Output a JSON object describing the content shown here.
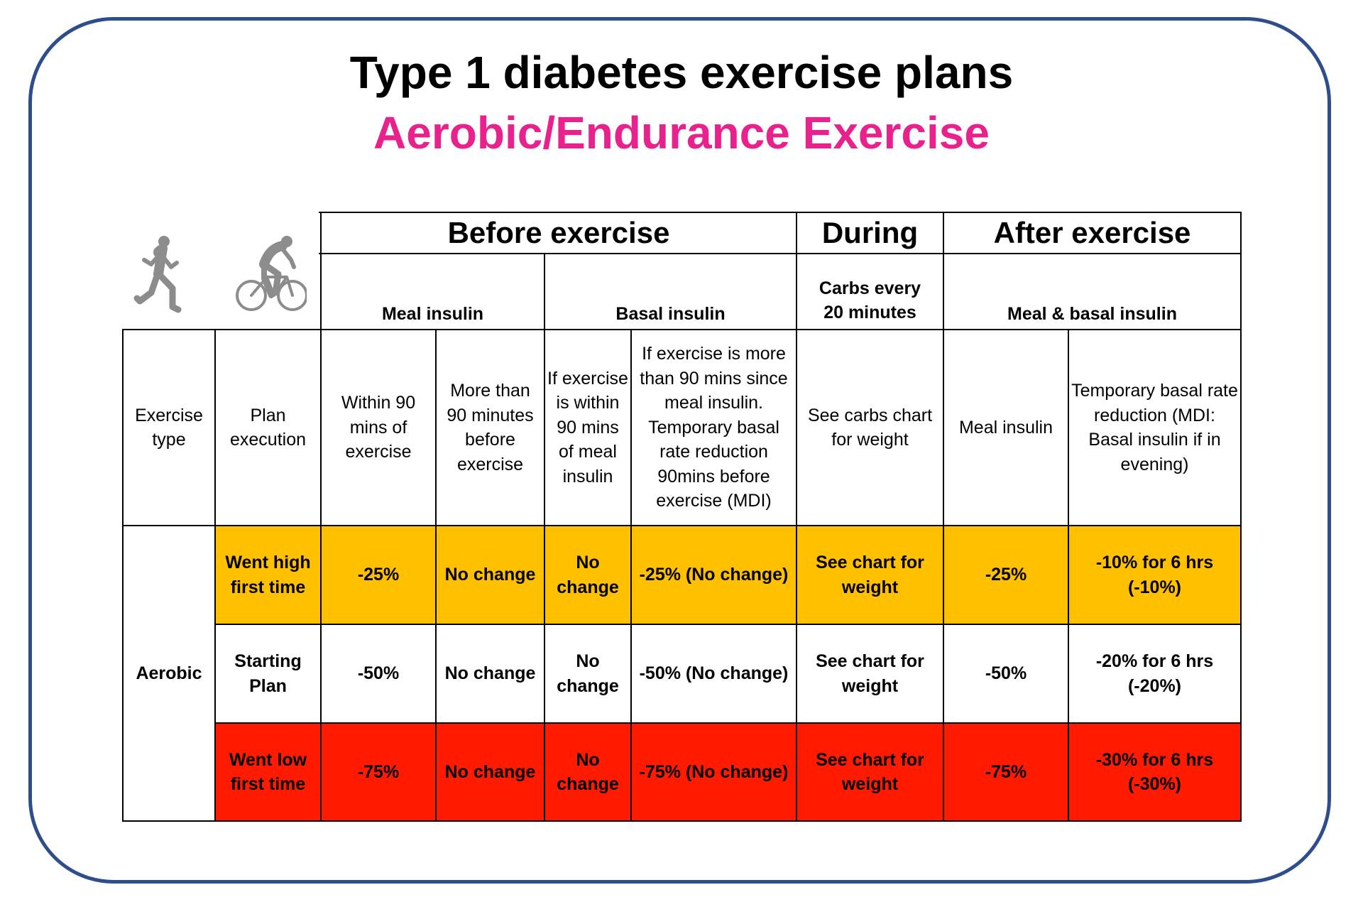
{
  "title": "Type 1 diabetes exercise plans",
  "subtitle": "Aerobic/Endurance Exercise",
  "icons": [
    "runner-icon",
    "cyclist-icon"
  ],
  "colors": {
    "frame": "#2e4d8c",
    "subtitle": "#e8218c",
    "went_high": "#ffc000",
    "went_low": "#ff1a00"
  },
  "table": {
    "phases": {
      "before": "Before exercise",
      "during": "During",
      "after": "After exercise"
    },
    "groups": {
      "meal_insulin": "Meal insulin",
      "basal_insulin": "Basal insulin",
      "carbs": "Carbs every 20 minutes",
      "meal_basal": "Meal & basal insulin"
    },
    "columns": {
      "exercise_type": "Exercise type",
      "plan_execution": "Plan execution",
      "within_90": "Within 90 mins of exercise",
      "more_than_90": "More than 90 minutes before exercise",
      "basal_within": "If exercise is within 90 mins of meal insulin",
      "basal_more": "If exercise is more than 90 mins since meal insulin. Temporary basal rate reduction 90mins before exercise (MDI)",
      "carbs_chart": "See carbs chart for weight",
      "after_meal": "Meal insulin",
      "after_basal": "Temporary basal rate reduction (MDI: Basal insulin if in evening)"
    },
    "exercise_type": "Aerobic",
    "rows": [
      {
        "plan": "Went high first time",
        "within_90": "-25%",
        "more_than_90": "No change",
        "basal_within": "No change",
        "basal_more": "-25% (No change)",
        "during": "See chart for weight",
        "after_meal": "-25%",
        "after_basal": "-10% for 6 hrs (-10%)"
      },
      {
        "plan": "Starting Plan",
        "within_90": "-50%",
        "more_than_90": "No change",
        "basal_within": "No change",
        "basal_more": "-50% (No change)",
        "during": "See chart for weight",
        "after_meal": "-50%",
        "after_basal": "-20% for 6 hrs (-20%)"
      },
      {
        "plan": "Went low first time",
        "within_90": "-75%",
        "more_than_90": "No change",
        "basal_within": "No change",
        "basal_more": "-75% (No change)",
        "during": "See chart for weight",
        "after_meal": "-75%",
        "after_basal": "-30% for 6 hrs (-30%)"
      }
    ]
  }
}
